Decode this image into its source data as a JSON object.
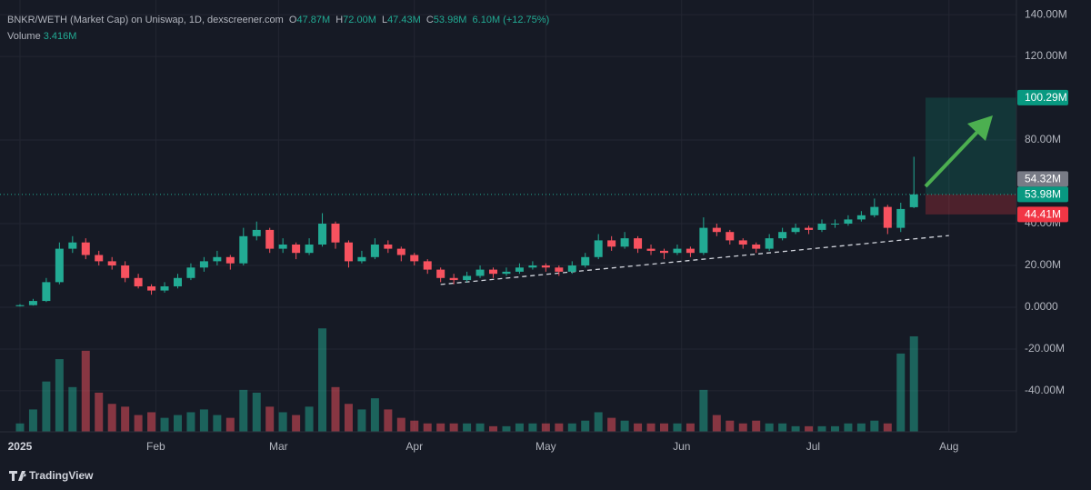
{
  "header": {
    "symbol": "BNKR/WETH (Market Cap) on Uniswap, 1D, dexscreener.com",
    "open_key": "O",
    "open": "47.87M",
    "high_key": "H",
    "high": "72.00M",
    "low_key": "L",
    "low": "47.43M",
    "close_key": "C",
    "close": "53.98M",
    "change": "6.10M (+12.75%)",
    "volume_key": "Volume",
    "volume": "3.416M"
  },
  "chart_data": {
    "type": "candlestick",
    "x": [
      0,
      3,
      6,
      9,
      12,
      15,
      18,
      21,
      24,
      27,
      30,
      33,
      36,
      39,
      42,
      45,
      48,
      51,
      54,
      57,
      60,
      63,
      66,
      69,
      72,
      75,
      78,
      81,
      84,
      87,
      90,
      93,
      96,
      99,
      102,
      105,
      108,
      111,
      114,
      117,
      120,
      123,
      126,
      129,
      132,
      135,
      138,
      141,
      144,
      147,
      150,
      153,
      156,
      159,
      162,
      165,
      168,
      171,
      174,
      177,
      180,
      183,
      186,
      189,
      192,
      195,
      198,
      201,
      204
    ],
    "open": [
      0.5,
      1,
      3,
      12,
      28,
      31,
      25,
      22,
      20,
      14,
      10,
      8,
      10,
      14,
      19,
      22,
      24,
      21,
      34,
      37,
      28,
      30,
      26,
      30,
      40,
      31,
      22,
      24,
      30,
      28,
      25,
      22,
      18,
      14,
      13,
      15,
      18,
      16,
      17,
      19,
      20,
      19,
      17,
      20,
      24,
      32,
      29,
      33,
      28,
      27,
      26,
      28,
      26,
      38,
      36,
      32,
      30,
      28,
      33,
      36,
      38,
      37,
      40,
      40,
      42,
      44,
      48,
      38,
      47.87
    ],
    "high": [
      1.5,
      4,
      14,
      31,
      34,
      33,
      27,
      24,
      22,
      16,
      11,
      12,
      16,
      21,
      24,
      27,
      25,
      38,
      41,
      38,
      33,
      31,
      33,
      45,
      41,
      32,
      27,
      33,
      32,
      29,
      26,
      23,
      19,
      16,
      17,
      20,
      19,
      19,
      21,
      22,
      21,
      20,
      22,
      26,
      35,
      34,
      36,
      34,
      30,
      28,
      30,
      29,
      43,
      40,
      37,
      33,
      31,
      35,
      38,
      40,
      39,
      42,
      42,
      44,
      46,
      52,
      49,
      50,
      72
    ],
    "low": [
      0.3,
      0.8,
      2.5,
      11,
      26,
      23,
      20,
      18,
      12,
      9,
      6,
      7,
      9,
      13,
      17,
      20,
      18,
      20,
      32,
      26,
      26,
      23,
      25,
      29,
      28,
      19,
      21,
      23,
      26,
      22,
      20,
      16,
      12,
      11,
      12,
      14,
      14,
      15,
      16,
      18,
      17,
      15,
      16,
      19,
      23,
      27,
      28,
      26,
      25,
      23,
      25,
      24,
      25,
      34,
      30,
      28,
      26,
      27,
      32,
      35,
      35,
      36,
      38,
      39,
      41,
      43,
      35,
      36,
      47.43
    ],
    "close": [
      1,
      3,
      12,
      28,
      31,
      25,
      22,
      20,
      14,
      10,
      8,
      10,
      14,
      19,
      22,
      24,
      21,
      34,
      37,
      28,
      30,
      26,
      30,
      40,
      31,
      22,
      24,
      30,
      28,
      25,
      22,
      18,
      14,
      13,
      15,
      18,
      16,
      17,
      19,
      20,
      19,
      17,
      20,
      24,
      32,
      29,
      33,
      28,
      27,
      26,
      28,
      26,
      38,
      36,
      32,
      30,
      28,
      33,
      36,
      38,
      37,
      40,
      40,
      42,
      44,
      48,
      38,
      47,
      53.98
    ],
    "volume": [
      0.3,
      0.8,
      1.8,
      2.6,
      1.6,
      2.9,
      1.4,
      1.0,
      0.9,
      0.6,
      0.7,
      0.5,
      0.6,
      0.7,
      0.8,
      0.6,
      0.5,
      1.5,
      1.4,
      0.9,
      0.7,
      0.6,
      0.9,
      3.7,
      1.6,
      1.0,
      0.8,
      1.2,
      0.8,
      0.5,
      0.4,
      0.3,
      0.3,
      0.3,
      0.3,
      0.3,
      0.2,
      0.2,
      0.3,
      0.3,
      0.3,
      0.3,
      0.3,
      0.4,
      0.7,
      0.5,
      0.4,
      0.3,
      0.3,
      0.3,
      0.3,
      0.3,
      1.5,
      0.6,
      0.4,
      0.3,
      0.4,
      0.3,
      0.3,
      0.2,
      0.2,
      0.2,
      0.2,
      0.3,
      0.3,
      0.4,
      0.3,
      2.8,
      3.416
    ],
    "up_color": "#22ab94",
    "down_color": "#f7525f",
    "xlim": [
      -4.56,
      227.4
    ],
    "xticks": [
      {
        "value": 0,
        "label": "2025"
      },
      {
        "value": 31,
        "label": "Feb"
      },
      {
        "value": 59,
        "label": "Mar"
      },
      {
        "value": 90,
        "label": "Apr"
      },
      {
        "value": 120,
        "label": "May"
      },
      {
        "value": 151,
        "label": "Jun"
      },
      {
        "value": 181,
        "label": "Jul"
      },
      {
        "value": 212,
        "label": "Aug"
      }
    ],
    "ylim": [
      -59.6,
      147
    ],
    "yticks": [
      {
        "value": 140,
        "label": "140.00M"
      },
      {
        "value": 120,
        "label": "120.00M"
      },
      {
        "value": 80,
        "label": "80.00M"
      },
      {
        "value": 40,
        "label": "40.00M"
      },
      {
        "value": 20,
        "label": "20.00M"
      },
      {
        "value": 0,
        "label": "0.0000"
      },
      {
        "value": -20,
        "label": "-20.00M"
      },
      {
        "value": -40,
        "label": "-40.00M"
      }
    ],
    "vlim": [
      0,
      4
    ],
    "grid": true,
    "levels": [
      {
        "value": 100.29,
        "label": "100.29M",
        "color": "#089981"
      },
      {
        "value": 54.32,
        "label": "54.32M",
        "color": "#787b86"
      },
      {
        "value": 53.98,
        "label": "53.98M",
        "color": "#089981"
      },
      {
        "value": 44.41,
        "label": "44.41M",
        "color": "#f23645"
      }
    ],
    "trendline": {
      "x": [
        96,
        212
      ],
      "values": [
        10.9,
        34.3
      ]
    }
  },
  "footer": {
    "brand": "TradingView"
  }
}
